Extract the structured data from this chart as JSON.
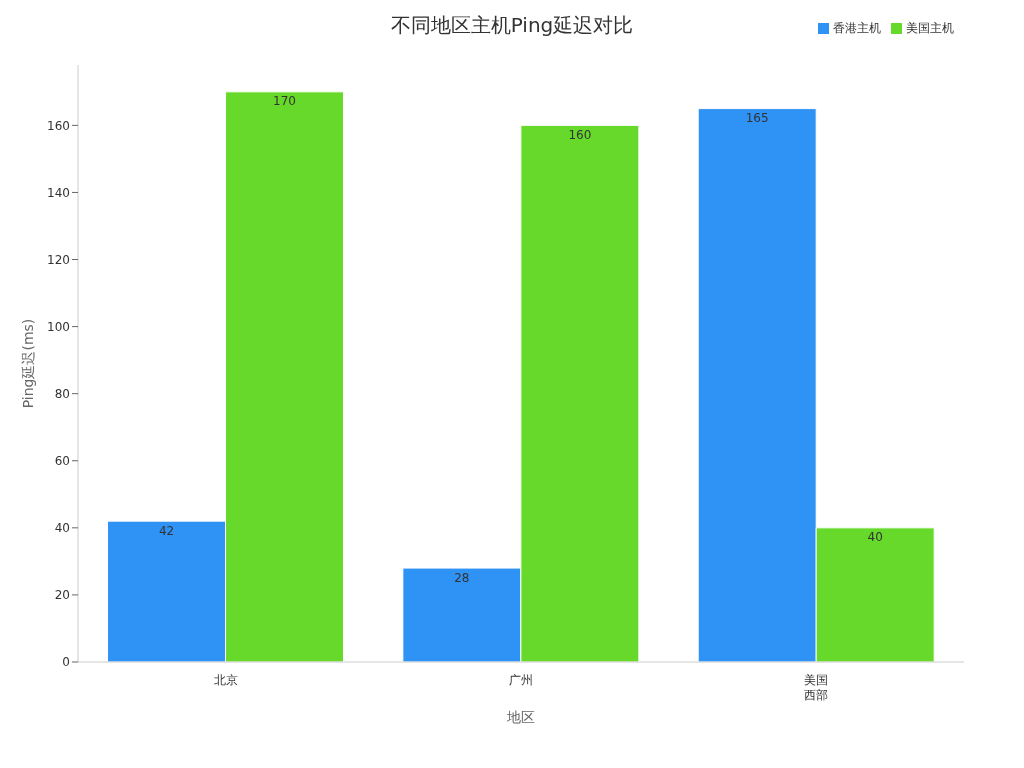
{
  "chart_data": {
    "type": "bar",
    "title": "不同地区主机Ping延迟对比",
    "xlabel": "地区",
    "ylabel": "Ping延迟(ms)",
    "categories": [
      "北京",
      "广州",
      "美国西部"
    ],
    "series": [
      {
        "name": "香港主机",
        "color": "#2f92f5",
        "values": [
          42,
          28,
          165
        ]
      },
      {
        "name": "美国主机",
        "color": "#66d92a",
        "values": [
          170,
          160,
          40
        ]
      }
    ],
    "ylim": [
      0,
      178
    ],
    "yticks": [
      0,
      20,
      40,
      60,
      80,
      100,
      120,
      140,
      160
    ],
    "legend": "top right",
    "data_labels": true
  }
}
